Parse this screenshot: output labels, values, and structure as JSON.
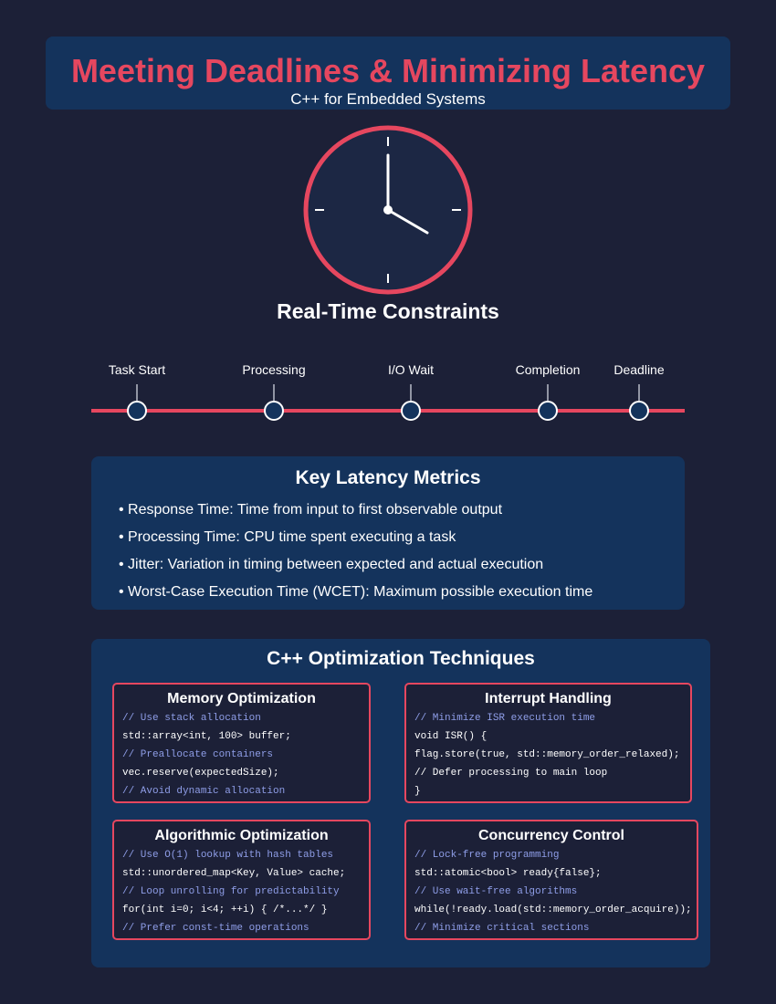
{
  "header": {
    "title": "Meeting Deadlines & Minimizing Latency",
    "subtitle": "C++ for Embedded Systems"
  },
  "colors": {
    "background": "#1c2037",
    "panel": "#14335c",
    "accent": "#e6475f",
    "comment": "#8f9ee8"
  },
  "clock": {
    "icon": "clock-icon",
    "time_shown": "4:00"
  },
  "constraints_title": "Real-Time Constraints",
  "timeline": {
    "points": [
      "Task Start",
      "Processing",
      "I/O Wait",
      "Completion",
      "Deadline"
    ]
  },
  "metrics": {
    "heading": "Key Latency Metrics",
    "items": [
      "• Response Time: Time from input to first observable output",
      "• Processing Time: CPU time spent executing a task",
      "• Jitter: Variation in timing between expected and actual execution",
      "• Worst-Case Execution Time (WCET): Maximum possible execution time"
    ]
  },
  "techniques": {
    "heading": "C++ Optimization Techniques",
    "cards": [
      {
        "title": "Memory Optimization",
        "lines": [
          {
            "text": "// Use stack allocation",
            "kind": "comment"
          },
          {
            "text": "std::array<int, 100> buffer;",
            "kind": "code"
          },
          {
            "text": "// Preallocate containers",
            "kind": "comment"
          },
          {
            "text": "vec.reserve(expectedSize);",
            "kind": "code"
          },
          {
            "text": "// Avoid dynamic allocation",
            "kind": "comment"
          }
        ]
      },
      {
        "title": "Interrupt Handling",
        "lines": [
          {
            "text": "// Minimize ISR execution time",
            "kind": "comment"
          },
          {
            "text": "void ISR() {",
            "kind": "code"
          },
          {
            "text": "flag.store(true, std::memory_order_relaxed);",
            "kind": "code"
          },
          {
            "text": "// Defer processing to main loop",
            "kind": "code"
          },
          {
            "text": "}",
            "kind": "code"
          }
        ]
      },
      {
        "title": "Algorithmic Optimization",
        "lines": [
          {
            "text": "// Use O(1) lookup with hash tables",
            "kind": "comment"
          },
          {
            "text": "std::unordered_map<Key, Value> cache;",
            "kind": "code"
          },
          {
            "text": "// Loop unrolling for predictability",
            "kind": "comment"
          },
          {
            "text": "for(int i=0; i<4; ++i) { /*...*/ }",
            "kind": "code"
          },
          {
            "text": "// Prefer const-time operations",
            "kind": "comment"
          }
        ]
      },
      {
        "title": "Concurrency Control",
        "lines": [
          {
            "text": "// Lock-free programming",
            "kind": "comment"
          },
          {
            "text": "std::atomic<bool> ready{false};",
            "kind": "code"
          },
          {
            "text": "// Use wait-free algorithms",
            "kind": "comment"
          },
          {
            "text": "while(!ready.load(std::memory_order_acquire));",
            "kind": "code"
          },
          {
            "text": "// Minimize critical sections",
            "kind": "comment"
          }
        ]
      }
    ]
  }
}
